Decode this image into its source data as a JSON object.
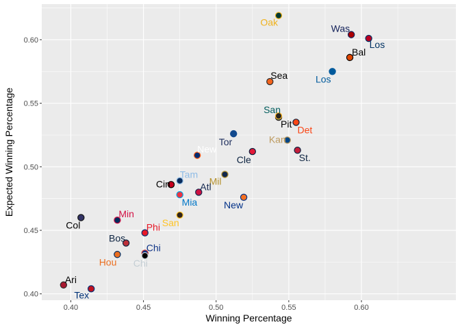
{
  "chart_data": {
    "type": "scatter",
    "title": "",
    "xlabel": "Winning Percentage",
    "ylabel": "Expected Winning Percentage",
    "xlim": [
      0.38,
      0.665
    ],
    "ylim": [
      0.395,
      0.628
    ],
    "xticks": [
      0.4,
      0.45,
      0.5,
      0.55,
      0.6
    ],
    "yticks": [
      0.4,
      0.45,
      0.5,
      0.55,
      0.6
    ],
    "xtick_labels": [
      "0.40",
      "0.45",
      "0.50",
      "0.55",
      "0.60"
    ],
    "ytick_labels": [
      "0.40",
      "0.45",
      "0.50",
      "0.55",
      "0.60"
    ],
    "grid": true,
    "panel_background": "#ebebeb",
    "points": [
      {
        "label": "Oak",
        "x": 0.543,
        "y": 0.619,
        "fill": "#003831",
        "stroke": "#EFB21E",
        "label_color": "#EFB21E",
        "anchor": "end",
        "dx": -1,
        "dy": 15
      },
      {
        "label": "Was",
        "x": 0.593,
        "y": 0.604,
        "fill": "#AB0003",
        "stroke": "#14225A",
        "label_color": "#14225A",
        "anchor": "end",
        "dx": -2,
        "dy": -4
      },
      {
        "label": "Los",
        "x": 0.605,
        "y": 0.601,
        "fill": "#BA0021",
        "stroke": "#003263",
        "label_color": "#003263",
        "anchor": "start",
        "dx": 1,
        "dy": 14
      },
      {
        "label": "Bal",
        "x": 0.592,
        "y": 0.586,
        "fill": "#DF4601",
        "stroke": "#000000",
        "label_color": "#000000",
        "anchor": "start",
        "dx": 3,
        "dy": -3
      },
      {
        "label": "Los",
        "x": 0.58,
        "y": 0.575,
        "fill": "#005A9C",
        "stroke": "#005A9C",
        "label_color": "#005A9C",
        "anchor": "end",
        "dx": -2,
        "dy": 16
      },
      {
        "label": "Sea",
        "x": 0.537,
        "y": 0.567,
        "fill": "#F3631C",
        "stroke": "#2d2d2d",
        "label_color": "#000000",
        "anchor": "start",
        "dx": 1,
        "dy": -4
      },
      {
        "label": "San",
        "x": 0.543,
        "y": 0.539,
        "fill": "#005C5C",
        "stroke": "#2F241D",
        "label_color": "#005C5C",
        "anchor": "end",
        "dx": 3,
        "dy": -6
      },
      {
        "label": "Pit",
        "x": 0.543,
        "y": 0.54,
        "fill": "#27251F",
        "stroke": "#FDB827",
        "label_color": "#000000",
        "anchor": "start",
        "dx": 3,
        "dy": 17
      },
      {
        "label": "Det",
        "x": 0.555,
        "y": 0.535,
        "fill": "#FA4616",
        "stroke": "#0C2340",
        "label_color": "#FA4616",
        "anchor": "start",
        "dx": 2,
        "dy": 16
      },
      {
        "label": "Tor",
        "x": 0.512,
        "y": 0.526,
        "fill": "#134A8E",
        "stroke": "#134A8E",
        "label_color": "#1D2D5C",
        "anchor": "end",
        "dx": -2,
        "dy": 17
      },
      {
        "label": "Kan",
        "x": 0.549,
        "y": 0.521,
        "fill": "#004687",
        "stroke": "#BD9B60",
        "label_color": "#BD9B60",
        "anchor": "end",
        "dx": -2,
        "dy": 4
      },
      {
        "label": "Cle",
        "x": 0.525,
        "y": 0.512,
        "fill": "#E31937",
        "stroke": "#0C2340",
        "label_color": "#0C2340",
        "anchor": "end",
        "dx": -2,
        "dy": 17
      },
      {
        "label": "St.",
        "x": 0.556,
        "y": 0.513,
        "fill": "#C41E3A",
        "stroke": "#0C2340",
        "label_color": "#0C2340",
        "anchor": "start",
        "dx": 2,
        "dy": 16
      },
      {
        "label": "New",
        "x": 0.487,
        "y": 0.509,
        "fill": "#002D72",
        "stroke": "#FF5910",
        "label_color": "#FFFFFF",
        "anchor": "start",
        "dx": 0,
        "dy": -4
      },
      {
        "label": "Mil",
        "x": 0.506,
        "y": 0.494,
        "fill": "#12284B",
        "stroke": "#B6922E",
        "label_color": "#B6922E",
        "anchor": "end",
        "dx": -5,
        "dy": 15
      },
      {
        "label": "Tam",
        "x": 0.475,
        "y": 0.489,
        "fill": "#092C5C",
        "stroke": "#8FBCE6",
        "label_color": "#8FBCE6",
        "anchor": "start",
        "dx": 0,
        "dy": -4
      },
      {
        "label": "Cin",
        "x": 0.469,
        "y": 0.486,
        "fill": "#C6011F",
        "stroke": "#000000",
        "label_color": "#000000",
        "anchor": "end",
        "dx": -1,
        "dy": 4
      },
      {
        "label": "Atl",
        "x": 0.488,
        "y": 0.48,
        "fill": "#CE1141",
        "stroke": "#13274F",
        "label_color": "#13274F",
        "anchor": "start",
        "dx": 2,
        "dy": -3
      },
      {
        "label": "Mia",
        "x": 0.475,
        "y": 0.478,
        "fill": "#EF3340",
        "stroke": "#00A3E0",
        "label_color": "#0077C8",
        "anchor": "start",
        "dx": 3,
        "dy": 16
      },
      {
        "label": "New",
        "x": 0.519,
        "y": 0.476,
        "fill": "#F36F21",
        "stroke": "#003087",
        "label_color": "#003087",
        "anchor": "end",
        "dx": -1,
        "dy": 16
      },
      {
        "label": "San",
        "x": 0.475,
        "y": 0.462,
        "fill": "#2F241D",
        "stroke": "#FFC425",
        "label_color": "#FFC425",
        "anchor": "end",
        "dx": -1,
        "dy": 16
      },
      {
        "label": "Col",
        "x": 0.407,
        "y": 0.46,
        "fill": "#333366",
        "stroke": "#131413",
        "label_color": "#000000",
        "anchor": "end",
        "dx": -1,
        "dy": 16
      },
      {
        "label": "Min",
        "x": 0.432,
        "y": 0.458,
        "fill": "#002B5C",
        "stroke": "#D31145",
        "label_color": "#D31145",
        "anchor": "start",
        "dx": 2,
        "dy": -4
      },
      {
        "label": "Phi",
        "x": 0.451,
        "y": 0.448,
        "fill": "#E81828",
        "stroke": "#002D72",
        "label_color": "#E81828",
        "anchor": "start",
        "dx": 2,
        "dy": -3
      },
      {
        "label": "Bos",
        "x": 0.438,
        "y": 0.44,
        "fill": "#BD3039",
        "stroke": "#0C2340",
        "label_color": "#0C2340",
        "anchor": "end",
        "dx": -1,
        "dy": -2
      },
      {
        "label": "Chi",
        "x": 0.451,
        "y": 0.432,
        "fill": "#0E3386",
        "stroke": "#CC3433",
        "label_color": "#0E3386",
        "anchor": "start",
        "dx": 2,
        "dy": -3
      },
      {
        "label": "Chi",
        "x": 0.451,
        "y": 0.43,
        "fill": "#000000",
        "stroke": "#C4CED4",
        "label_color": "#C4CED4",
        "anchor": "end",
        "dx": 4,
        "dy": 16
      },
      {
        "label": "Hou",
        "x": 0.432,
        "y": 0.431,
        "fill": "#EB6E1F",
        "stroke": "#002D62",
        "label_color": "#EB6E1F",
        "anchor": "end",
        "dx": -1,
        "dy": 16
      },
      {
        "label": "Ari",
        "x": 0.395,
        "y": 0.407,
        "fill": "#A71930",
        "stroke": "#2d2d2d",
        "label_color": "#000000",
        "anchor": "start",
        "dx": 2,
        "dy": -3
      },
      {
        "label": "Tex",
        "x": 0.414,
        "y": 0.404,
        "fill": "#C0111F",
        "stroke": "#003278",
        "label_color": "#003278",
        "anchor": "end",
        "dx": -3,
        "dy": 14
      }
    ]
  }
}
